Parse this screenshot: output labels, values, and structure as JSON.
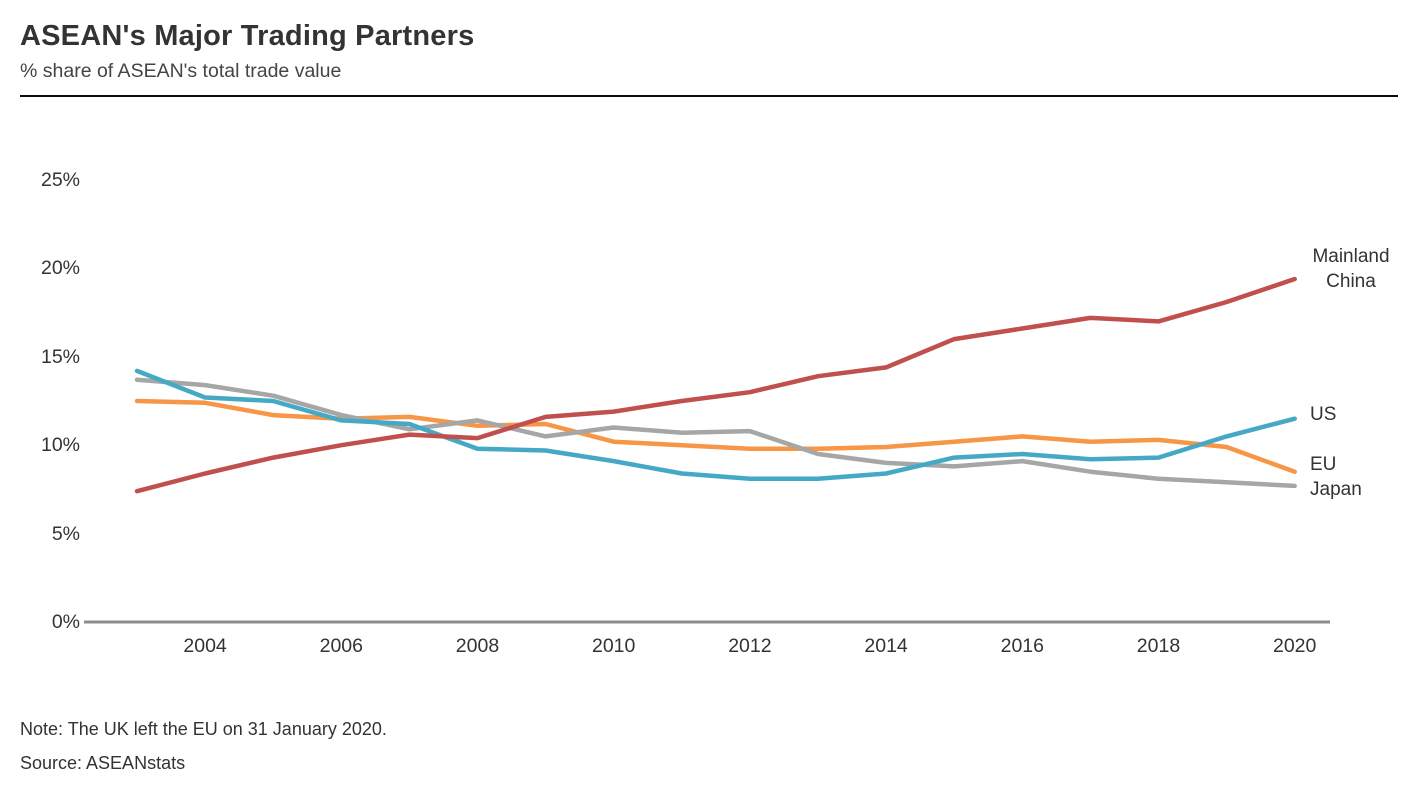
{
  "header": {
    "title": "ASEAN's Major Trading Partners",
    "subtitle": "% share of ASEAN's total trade value"
  },
  "footer": {
    "note": "Note: The UK left the EU on 31 January 2020.",
    "source": "Source: ASEANstats"
  },
  "chart_data": {
    "type": "line",
    "title": "ASEAN's Major Trading Partners",
    "subtitle": "% share of ASEAN's total trade value",
    "xlabel": "",
    "ylabel": "% share of ASEAN's total trade value",
    "x": [
      2003,
      2004,
      2005,
      2006,
      2007,
      2008,
      2009,
      2010,
      2011,
      2012,
      2013,
      2014,
      2015,
      2016,
      2017,
      2018,
      2019,
      2020
    ],
    "x_tick_labels": [
      "2004",
      "2006",
      "2008",
      "2010",
      "2012",
      "2014",
      "2016",
      "2018",
      "2020"
    ],
    "y_ticks": [
      0,
      5,
      10,
      15,
      20,
      25
    ],
    "y_tick_labels": [
      "0%",
      "5%",
      "10%",
      "15%",
      "20%",
      "25%"
    ],
    "ylim": [
      0,
      25
    ],
    "xlim": [
      2003,
      2020
    ],
    "grid": "off",
    "legend_position": "right-edge-direct-labels",
    "axis_color": "#8c8c8c",
    "series": [
      {
        "name": "Mainland China",
        "color": "#c0504d",
        "values": [
          7.4,
          8.4,
          9.3,
          10.0,
          10.6,
          10.4,
          11.6,
          11.9,
          12.5,
          13.0,
          13.9,
          14.4,
          16.0,
          16.6,
          17.2,
          17.0,
          18.1,
          19.4
        ]
      },
      {
        "name": "US",
        "color": "#45a9c6",
        "values": [
          14.2,
          12.7,
          12.5,
          11.4,
          11.2,
          9.8,
          9.7,
          9.1,
          8.4,
          8.1,
          8.1,
          8.4,
          9.3,
          9.5,
          9.2,
          9.3,
          10.5,
          11.5
        ]
      },
      {
        "name": "EU",
        "color": "#f79646",
        "values": [
          12.5,
          12.4,
          11.7,
          11.5,
          11.6,
          11.1,
          11.2,
          10.2,
          10.0,
          9.8,
          9.8,
          9.9,
          10.2,
          10.5,
          10.2,
          10.3,
          9.9,
          8.5
        ]
      },
      {
        "name": "Japan",
        "color": "#a6a6a6",
        "values": [
          13.7,
          13.4,
          12.8,
          11.7,
          10.9,
          11.4,
          10.5,
          11.0,
          10.7,
          10.8,
          9.5,
          9.0,
          8.8,
          9.1,
          8.5,
          8.1,
          7.9,
          7.7
        ]
      }
    ]
  }
}
